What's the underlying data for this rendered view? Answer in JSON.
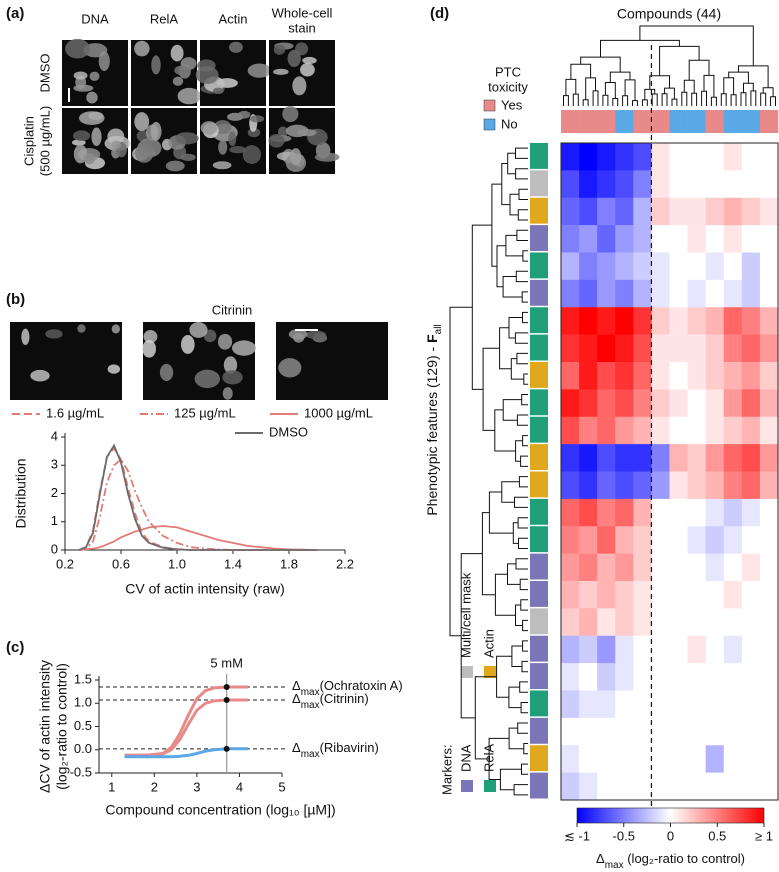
{
  "panel_labels": [
    "(a)",
    "(b)",
    "(c)",
    "(d)"
  ],
  "panel_a": {
    "columns": [
      [
        "DNA"
      ],
      [
        "RelA"
      ],
      [
        "Actin"
      ],
      [
        "Whole-cell",
        "stain"
      ]
    ],
    "rows": [
      [
        "DMSO"
      ],
      [
        "Cisplatin",
        "(500 µg/mL)"
      ]
    ]
  },
  "panel_b": {
    "image_title": "Citrinin"
  },
  "chart_data": [
    {
      "type": "line",
      "xlabel": "CV of actin intensity (raw)",
      "ylabel": "Distribution",
      "x": [
        0.3,
        0.35,
        0.4,
        0.45,
        0.5,
        0.55,
        0.6,
        0.65,
        0.7,
        0.75,
        0.8,
        0.9,
        1.0,
        1.1,
        1.2,
        1.3,
        1.4,
        1.5,
        1.6,
        1.7,
        1.8,
        1.9,
        2.0
      ],
      "series": [
        {
          "name": "1.6 µg/mL",
          "color": "#e07b78",
          "dash": "dashed",
          "values": [
            0,
            0.1,
            0.7,
            2.1,
            3.3,
            3.6,
            3.2,
            2.2,
            1.3,
            0.6,
            0.3,
            0.1,
            0.03,
            0,
            0,
            0,
            0,
            0,
            0,
            0,
            0,
            0,
            0
          ]
        },
        {
          "name": "125 µg/mL",
          "color": "#e07b78",
          "dash": "dashdot",
          "values": [
            0,
            0.05,
            0.3,
            1.2,
            2.4,
            3.0,
            3.2,
            2.8,
            2.1,
            1.5,
            1.0,
            0.5,
            0.25,
            0.1,
            0.05,
            0.02,
            0,
            0,
            0,
            0,
            0,
            0,
            0
          ]
        },
        {
          "name": "1000 µg/mL",
          "color": "#e07b78",
          "dash": "solid",
          "values": [
            0,
            0.02,
            0.05,
            0.1,
            0.2,
            0.3,
            0.45,
            0.55,
            0.65,
            0.72,
            0.8,
            0.85,
            0.8,
            0.65,
            0.5,
            0.35,
            0.25,
            0.15,
            0.1,
            0.05,
            0.02,
            0.01,
            0
          ]
        },
        {
          "name": "DMSO",
          "color": "#6b6b6b",
          "dash": "solid",
          "values": [
            0,
            0.1,
            0.6,
            2.0,
            3.3,
            3.7,
            3.1,
            2.0,
            1.1,
            0.5,
            0.25,
            0.08,
            0.02,
            0,
            0,
            0,
            0,
            0,
            0,
            0,
            0,
            0,
            0
          ]
        }
      ],
      "xlim": [
        0.2,
        2.2
      ],
      "xticks": [
        0.2,
        0.6,
        {
          "value": 1,
          "label": "1.0"
        },
        1.4,
        1.8,
        2.2
      ],
      "ylim": [
        0,
        4
      ],
      "yticks": [
        0,
        1,
        2,
        3,
        4
      ]
    },
    {
      "type": "line",
      "xlabel": "Compound concentration (log₁₀ [µM])",
      "ylabel": [
        "ΔCV of actin intensity",
        "(log₂-ratio to control)"
      ],
      "x": [
        1.3,
        1.6,
        1.9,
        2.2,
        2.4,
        2.6,
        2.8,
        3.0,
        3.2,
        3.4,
        3.7,
        4.0,
        4.2
      ],
      "series": [
        {
          "label": {
            "delta": "Δ",
            "sub": "max",
            "text": "(Ochratoxin A)"
          },
          "color": "#e88a8a",
          "dash": "solid",
          "values": [
            -0.12,
            -0.12,
            -0.11,
            -0.08,
            0.05,
            0.35,
            0.75,
            1.1,
            1.27,
            1.33,
            1.35,
            1.35,
            1.35
          ]
        },
        {
          "label": {
            "delta": "Δ",
            "sub": "max",
            "text": "(Citrinin)"
          },
          "color": "#e88a8a",
          "dash": "solid",
          "values": [
            -0.12,
            -0.12,
            -0.11,
            -0.09,
            0,
            0.22,
            0.55,
            0.85,
            1.0,
            1.05,
            1.07,
            1.07,
            1.07
          ]
        },
        {
          "label": {
            "delta": "Δ",
            "sub": "max",
            "text": "(Ribavirin)"
          },
          "color": "#5aa9e6",
          "dash": "solid",
          "values": [
            -0.15,
            -0.15,
            -0.15,
            -0.15,
            -0.15,
            -0.14,
            -0.12,
            -0.08,
            -0.03,
            0,
            0.02,
            0.02,
            0.02
          ]
        }
      ],
      "vline": {
        "x": 3.7,
        "label": "5 mM"
      },
      "xlim": [
        0.7,
        5
      ],
      "xticks": [
        1,
        2,
        3,
        4,
        5
      ],
      "ylim": [
        -0.5,
        1.5
      ],
      "yticks": [
        -0.5,
        {
          "value": 0,
          "label": "0.0"
        },
        0.5,
        {
          "value": 1,
          "label": "1.0"
        },
        1.5
      ]
    },
    {
      "type": "heatmap",
      "title": "Compounds (44)",
      "ylabel": {
        "text": "Phenotypic features (129) - ",
        "bold": "F",
        "sub": "all"
      },
      "ptc_title": [
        "PTC",
        "toxicity"
      ],
      "ptc_legend": [
        {
          "name": "Yes",
          "color": "#e88a8a"
        },
        {
          "name": "No",
          "color": "#5aa9e6"
        }
      ],
      "ptc": [
        "Yes",
        "Yes",
        "Yes",
        "No",
        "Yes",
        "Yes",
        "No",
        "No",
        "Yes",
        "No",
        "No",
        "Yes"
      ],
      "cluster_split": 5,
      "markers_title": "Markers:",
      "markers_legend": [
        {
          "name": "DNA",
          "color": "#7b76b8"
        },
        {
          "name": "RelA",
          "color": "#1f9e7a"
        },
        {
          "name": "Multi/cell mask",
          "color": "#bdbdbd"
        },
        {
          "name": "Actin",
          "color": "#e0a81c"
        }
      ],
      "markers": [
        "RelA",
        "Multi/cell mask",
        "Actin",
        "DNA",
        "RelA",
        "DNA",
        "RelA",
        "RelA",
        "Actin",
        "RelA",
        "RelA",
        "Actin",
        "Actin",
        "RelA",
        "RelA",
        "DNA",
        "DNA",
        "Multi/cell mask",
        "DNA",
        "DNA",
        "RelA",
        "DNA",
        "Actin",
        "DNA"
      ],
      "values": [
        [
          -0.9,
          -1,
          -0.9,
          -0.8,
          -0.7,
          0.1,
          0,
          0,
          0,
          0.1,
          0,
          0
        ],
        [
          -0.7,
          -0.9,
          -0.8,
          -0.7,
          -0.5,
          0.1,
          0,
          0,
          0,
          0,
          0,
          0
        ],
        [
          -0.6,
          -0.7,
          -0.5,
          -0.6,
          -0.3,
          0.2,
          0.1,
          0.1,
          0.2,
          0.3,
          0.2,
          0.1
        ],
        [
          -0.5,
          -0.4,
          -0.6,
          -0.4,
          -0.3,
          0,
          0,
          0.1,
          0,
          0.1,
          0,
          0
        ],
        [
          -0.3,
          -0.5,
          -0.4,
          -0.3,
          -0.2,
          -0.1,
          0,
          0,
          -0.1,
          0,
          -0.2,
          0
        ],
        [
          -0.5,
          -0.6,
          -0.4,
          -0.5,
          -0.3,
          -0.1,
          0,
          -0.1,
          0,
          -0.1,
          -0.2,
          0
        ],
        [
          0.9,
          1,
          0.9,
          1,
          0.8,
          0.2,
          0.1,
          0.2,
          0.3,
          0.6,
          0.5,
          0.3
        ],
        [
          0.8,
          0.9,
          1,
          0.9,
          0.7,
          0.1,
          0.1,
          0.1,
          0.2,
          0.5,
          0.6,
          0.4
        ],
        [
          0.6,
          0.9,
          0.7,
          0.8,
          0.6,
          0.1,
          0,
          0.1,
          0.2,
          0.3,
          0.4,
          0.2
        ],
        [
          0.9,
          0.8,
          0.6,
          0.7,
          0.5,
          0.2,
          0.1,
          0,
          0.1,
          0.4,
          0.6,
          0.3
        ],
        [
          0.7,
          0.5,
          0.6,
          0.4,
          0.3,
          0.1,
          0,
          0,
          0.1,
          0.2,
          0.3,
          0.1
        ],
        [
          -0.8,
          -0.9,
          -0.7,
          -0.8,
          -0.8,
          -0.5,
          0.3,
          0.2,
          0.4,
          0.6,
          0.7,
          0.4
        ],
        [
          -0.7,
          -0.8,
          -0.6,
          -0.7,
          -0.6,
          -0.4,
          0.1,
          0.2,
          0.3,
          0.5,
          0.6,
          0.3
        ],
        [
          0.6,
          0.7,
          0.5,
          0.6,
          0.3,
          0,
          0,
          0,
          -0.1,
          -0.2,
          -0.1,
          0
        ],
        [
          0.5,
          0.4,
          0.6,
          0.3,
          0.2,
          0,
          0,
          -0.1,
          -0.2,
          -0.1,
          0,
          0
        ],
        [
          0.4,
          0.5,
          0.3,
          0.4,
          0.2,
          0,
          0,
          0,
          -0.1,
          0,
          0.1,
          0
        ],
        [
          0.3,
          0.2,
          0.3,
          0.2,
          0.1,
          0,
          0,
          0,
          0,
          0.1,
          0,
          0
        ],
        [
          0.2,
          0.3,
          0.1,
          0.2,
          0.1,
          0,
          0,
          0,
          0,
          0,
          0,
          0
        ],
        [
          -0.3,
          -0.2,
          -0.4,
          -0.1,
          0,
          0,
          0,
          0.1,
          0,
          -0.1,
          0,
          0
        ],
        [
          -0.1,
          0,
          -0.2,
          -0.1,
          0,
          0,
          0,
          0,
          0,
          0,
          0,
          0
        ],
        [
          -0.2,
          -0.1,
          -0.1,
          0,
          0,
          0,
          0,
          0,
          0,
          0,
          0,
          0
        ],
        [
          0,
          0,
          0,
          0,
          0,
          0,
          0,
          0,
          0,
          0,
          0,
          0
        ],
        [
          -0.1,
          0,
          0,
          0,
          0,
          0,
          0,
          0,
          -0.3,
          0,
          0,
          0
        ],
        [
          -0.2,
          -0.1,
          0,
          0,
          0,
          0,
          0,
          0,
          0,
          0,
          0,
          0
        ]
      ],
      "zlim": [
        -1,
        1
      ],
      "zticks": [
        {
          "value": -1,
          "label": "≲ -1"
        },
        -0.5,
        0,
        0.5,
        {
          "value": 1,
          "label": "≥ 1"
        }
      ],
      "colorbar_label": {
        "delta": "Δ",
        "sub": "max",
        "text": " (log₂-ratio to control)"
      }
    }
  ]
}
